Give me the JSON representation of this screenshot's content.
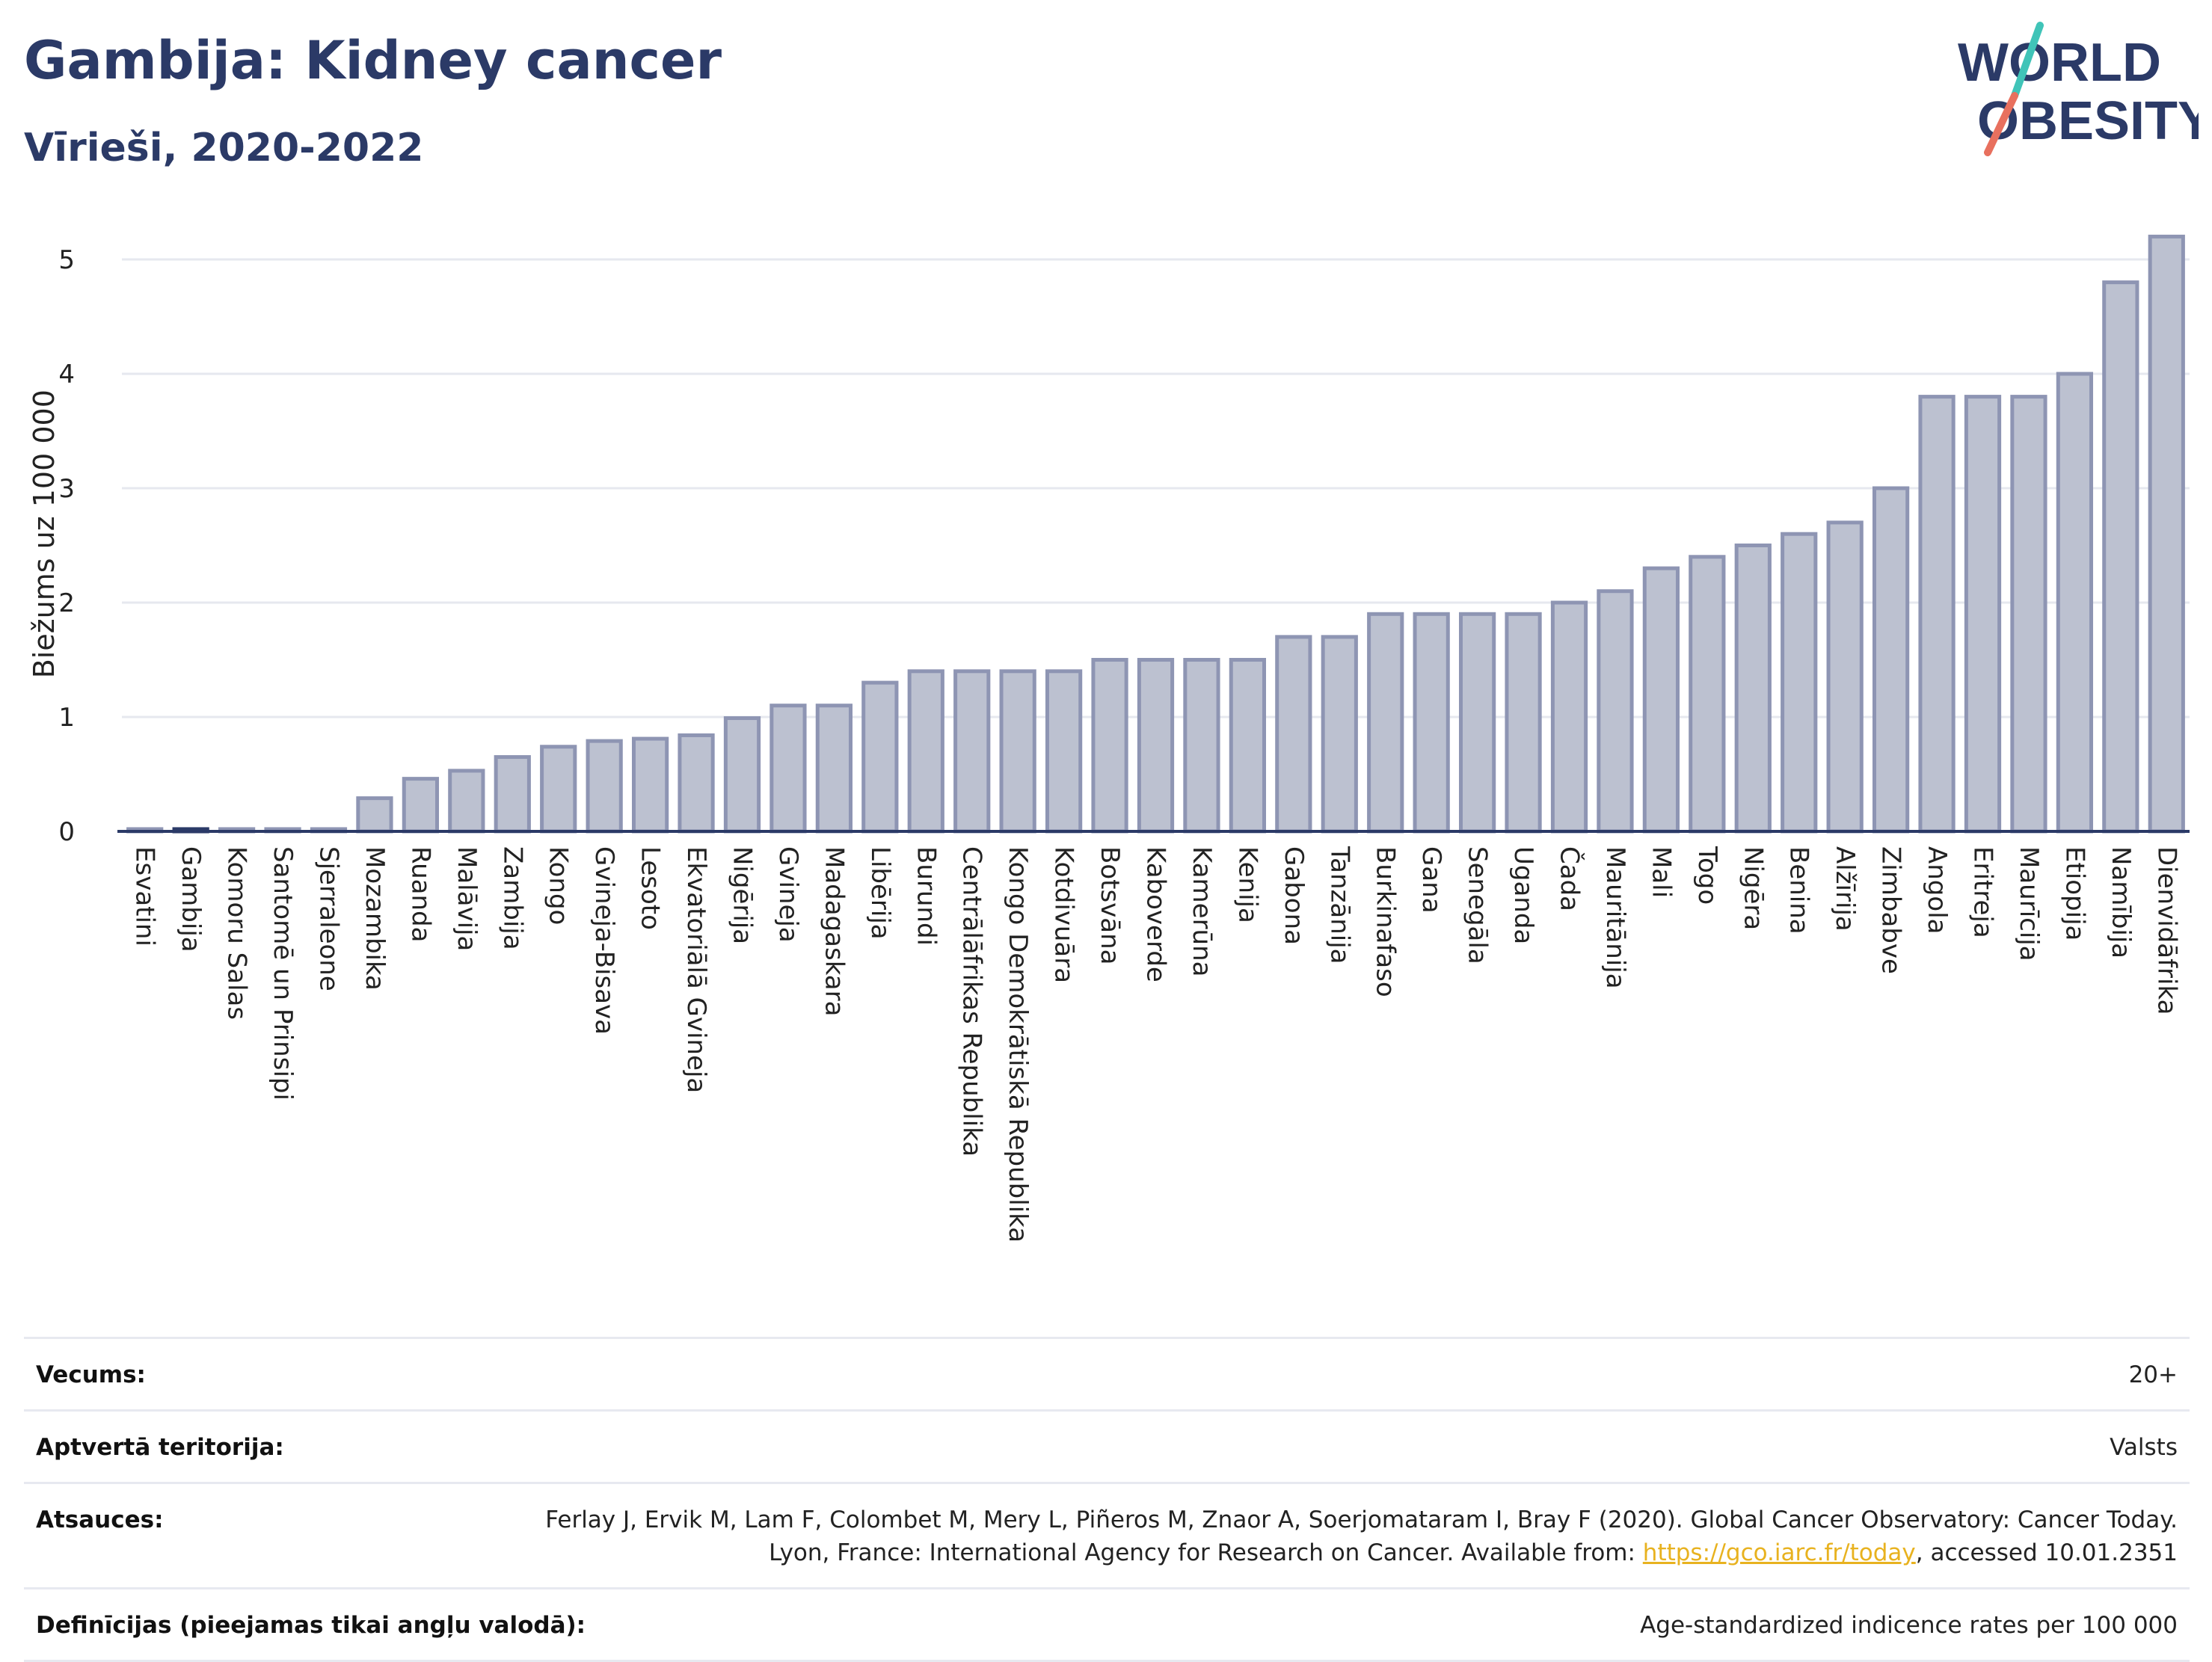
{
  "header": {
    "title": "Gambija: Kidney cancer",
    "subtitle": "Vīrieši, 2020-2022"
  },
  "logo": {
    "line1": "WORLD",
    "line2": "OBESITY",
    "text_color": "#2b3a67",
    "accent_colors": [
      "#40c4b8",
      "#e8705e"
    ]
  },
  "colors": {
    "bar_fill": "#bcc1d0",
    "bar_stroke": "#8e95b3",
    "highlight": "#2b3a67",
    "grid": "#e6e8ef",
    "axis": "#2b3a67",
    "link": "#e8b21f"
  },
  "chart_data": {
    "type": "bar",
    "ylabel": "Biežums uz 100 000",
    "xlabel": "",
    "ylim": [
      0,
      5.2
    ],
    "yticks": [
      0,
      1,
      2,
      3,
      4,
      5
    ],
    "grid": true,
    "highlight_category": "Gambija",
    "categories": [
      "Esvatini",
      "Gambija",
      "Komoru Salas",
      "Santomē un Prinsipi",
      "Sjerraleone",
      "Mozambika",
      "Ruanda",
      "Malāvija",
      "Zambija",
      "Kongo",
      "Gvineja-Bisava",
      "Lesoto",
      "Ekvatoriālā Gvineja",
      "Nigērija",
      "Gvineja",
      "Madagaskara",
      "Libērija",
      "Burundi",
      "Centrālāfrikas Republika",
      "Kongo Demokrātiskā Republika",
      "Kotdivuāra",
      "Botsvāna",
      "Kaboverde",
      "Kamerūna",
      "Kenija",
      "Gabona",
      "Tanzānija",
      "Burkinafaso",
      "Gana",
      "Senegāla",
      "Uganda",
      "Čada",
      "Mauritānija",
      "Mali",
      "Togo",
      "Nigēra",
      "Benina",
      "Alžīrija",
      "Zimbabve",
      "Angola",
      "Eritreja",
      "Maurīcija",
      "Etiopija",
      "Namībija",
      "Dienvidāfrika"
    ],
    "values": [
      0.02,
      0.02,
      0.02,
      0.02,
      0.02,
      0.29,
      0.46,
      0.53,
      0.65,
      0.74,
      0.79,
      0.81,
      0.84,
      0.99,
      1.1,
      1.1,
      1.3,
      1.4,
      1.4,
      1.4,
      1.4,
      1.5,
      1.5,
      1.5,
      1.5,
      1.7,
      1.7,
      1.9,
      1.9,
      1.9,
      1.9,
      2.0,
      2.1,
      2.3,
      2.4,
      2.5,
      2.6,
      2.7,
      3.0,
      3.8,
      3.8,
      3.8,
      4.0,
      4.8,
      5.2
    ]
  },
  "info": {
    "age_label": "Vecums:",
    "age_value": "20+",
    "coverage_label": "Aptvertā teritorija:",
    "coverage_value": "Valsts",
    "references_label": "Atsauces:",
    "references_text_1": "Ferlay J, Ervik M, Lam F, Colombet M, Mery L, Piñeros M, Znaor A, Soerjomataram I, Bray F (2020). Global Cancer Observatory: Cancer Today. Lyon, France: International Agency for Research on Cancer. Available from: ",
    "references_link": "https://gco.iarc.fr/today",
    "references_text_2": ", accessed 10.01.2351",
    "definitions_label": "Definīcijas (pieejamas tikai angļu valodā):",
    "definitions_value": "Age-standardized indicence rates per 100 000"
  }
}
